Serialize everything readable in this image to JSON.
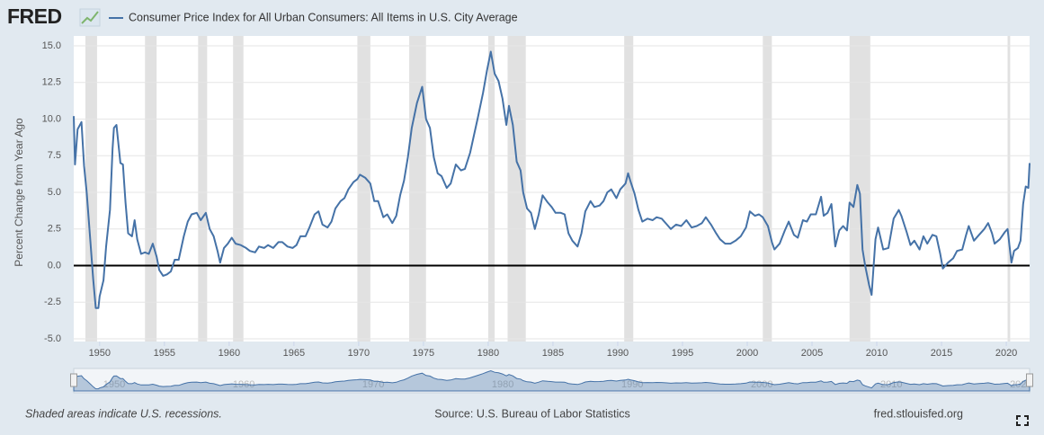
{
  "chart_data": {
    "type": "line",
    "logo": "FRED",
    "ylabel": "Percent Change from Year Ago",
    "source": "Source: U.S. Bureau of Labor Statistics",
    "recession_note": "Shaded areas indicate U.S. recessions.",
    "site": "fred.stlouisfed.org",
    "xlim": [
      1948,
      2021.8
    ],
    "ylim": [
      -5,
      15
    ],
    "xticks": [
      1950,
      1955,
      1960,
      1965,
      1970,
      1975,
      1980,
      1985,
      1990,
      1995,
      2000,
      2005,
      2010,
      2015,
      2020
    ],
    "yticks": [
      {
        "value": -5,
        "label": "-5.0"
      },
      -2.5,
      {
        "value": 0,
        "label": "0.0"
      },
      2.5,
      {
        "value": 5,
        "label": "5.0"
      },
      7.5,
      {
        "value": 10,
        "label": "10.0"
      },
      12.5,
      {
        "value": 15,
        "label": "15.0"
      }
    ],
    "navigator_xticks": [
      1950,
      1960,
      1970,
      1980,
      1990,
      2000,
      2010,
      2020
    ],
    "grid": true,
    "zero_line": true,
    "recession_color": "#e1e1e1",
    "recessions": [
      [
        1948.9,
        1949.8
      ],
      [
        1953.5,
        1954.4
      ],
      [
        1957.6,
        1958.3
      ],
      [
        1960.3,
        1961.1
      ],
      [
        1969.9,
        1970.9
      ],
      [
        1973.9,
        1975.2
      ],
      [
        1980.0,
        1980.5
      ],
      [
        1981.5,
        1982.9
      ],
      [
        1990.5,
        1991.2
      ],
      [
        2001.2,
        2001.9
      ],
      [
        2007.9,
        2009.5
      ],
      [
        2020.1,
        2020.3
      ]
    ],
    "x": [
      1948.0,
      1948.1,
      1948.3,
      1948.6,
      1948.8,
      1949.0,
      1949.3,
      1949.5,
      1949.7,
      1949.9,
      1950.0,
      1950.3,
      1950.5,
      1950.8,
      1951.0,
      1951.1,
      1951.3,
      1951.6,
      1951.8,
      1952.0,
      1952.2,
      1952.5,
      1952.7,
      1952.9,
      1953.2,
      1953.5,
      1953.8,
      1954.1,
      1954.4,
      1954.6,
      1954.9,
      1955.2,
      1955.5,
      1955.8,
      1956.1,
      1956.5,
      1956.8,
      1957.1,
      1957.5,
      1957.8,
      1958.2,
      1958.5,
      1958.8,
      1959.1,
      1959.3,
      1959.6,
      1959.9,
      1960.2,
      1960.5,
      1960.9,
      1961.3,
      1961.6,
      1962.0,
      1962.3,
      1962.7,
      1963.0,
      1963.4,
      1963.8,
      1964.1,
      1964.5,
      1964.9,
      1965.2,
      1965.5,
      1965.9,
      1966.2,
      1966.6,
      1966.9,
      1967.2,
      1967.6,
      1967.9,
      1968.2,
      1968.6,
      1968.9,
      1969.2,
      1969.6,
      1969.9,
      1970.1,
      1970.5,
      1970.9,
      1971.2,
      1971.5,
      1971.9,
      1972.2,
      1972.6,
      1972.9,
      1973.2,
      1973.5,
      1973.8,
      1974.1,
      1974.5,
      1974.9,
      1975.2,
      1975.5,
      1975.8,
      1976.1,
      1976.4,
      1976.8,
      1977.1,
      1977.5,
      1977.9,
      1978.2,
      1978.6,
      1978.9,
      1979.2,
      1979.6,
      1979.9,
      1980.2,
      1980.5,
      1980.8,
      1981.1,
      1981.4,
      1981.6,
      1981.9,
      1982.2,
      1982.5,
      1982.7,
      1983.0,
      1983.3,
      1983.6,
      1983.9,
      1984.2,
      1984.6,
      1984.9,
      1985.2,
      1985.6,
      1985.9,
      1986.2,
      1986.5,
      1986.9,
      1987.2,
      1987.5,
      1987.9,
      1988.2,
      1988.6,
      1988.9,
      1989.2,
      1989.5,
      1989.9,
      1990.2,
      1990.6,
      1990.8,
      1991.0,
      1991.3,
      1991.6,
      1991.9,
      1992.3,
      1992.7,
      1993.0,
      1993.4,
      1993.8,
      1994.1,
      1994.5,
      1994.9,
      1995.3,
      1995.7,
      1996.1,
      1996.5,
      1996.8,
      1997.2,
      1997.6,
      1997.9,
      1998.3,
      1998.7,
      1999.1,
      1999.5,
      1999.9,
      2000.2,
      2000.6,
      2000.9,
      2001.2,
      2001.6,
      2001.9,
      2002.1,
      2002.5,
      2002.9,
      2003.2,
      2003.6,
      2003.9,
      2004.3,
      2004.6,
      2004.9,
      2005.3,
      2005.7,
      2005.9,
      2006.2,
      2006.5,
      2006.8,
      2007.1,
      2007.4,
      2007.7,
      2007.9,
      2008.2,
      2008.5,
      2008.7,
      2008.9,
      2009.1,
      2009.4,
      2009.6,
      2009.9,
      2010.1,
      2010.5,
      2010.9,
      2011.3,
      2011.7,
      2011.9,
      2012.3,
      2012.6,
      2012.9,
      2013.3,
      2013.6,
      2013.9,
      2014.3,
      2014.6,
      2014.9,
      2015.1,
      2015.5,
      2015.9,
      2016.2,
      2016.6,
      2016.9,
      2017.1,
      2017.5,
      2017.9,
      2018.3,
      2018.6,
      2018.9,
      2019.1,
      2019.5,
      2019.9,
      2020.1,
      2020.4,
      2020.6,
      2020.9,
      2021.1,
      2021.3,
      2021.5,
      2021.7,
      2021.8
    ],
    "series": [
      {
        "name": "Consumer Price Index for All Urban Consumers: All Items in U.S. City Average",
        "color": "#4572a7",
        "values": [
          10.2,
          6.9,
          9.3,
          9.8,
          6.8,
          5.0,
          1.5,
          -0.9,
          -2.9,
          -2.9,
          -2.1,
          -1.0,
          1.3,
          3.8,
          8.0,
          9.4,
          9.6,
          7.0,
          6.9,
          4.3,
          2.2,
          2.0,
          3.1,
          1.8,
          0.8,
          0.9,
          0.8,
          1.5,
          0.6,
          -0.3,
          -0.7,
          -0.6,
          -0.4,
          0.4,
          0.4,
          2.0,
          3.0,
          3.5,
          3.6,
          3.1,
          3.6,
          2.5,
          2.0,
          1.0,
          0.2,
          1.2,
          1.5,
          1.9,
          1.5,
          1.4,
          1.2,
          1.0,
          0.9,
          1.3,
          1.2,
          1.4,
          1.2,
          1.6,
          1.6,
          1.3,
          1.2,
          1.4,
          2.0,
          2.0,
          2.6,
          3.5,
          3.7,
          2.8,
          2.6,
          3.0,
          3.9,
          4.4,
          4.6,
          5.2,
          5.7,
          5.9,
          6.2,
          6.0,
          5.6,
          4.4,
          4.4,
          3.3,
          3.5,
          2.9,
          3.4,
          4.8,
          5.8,
          7.4,
          9.4,
          11.1,
          12.2,
          10.0,
          9.4,
          7.4,
          6.3,
          6.1,
          5.3,
          5.6,
          6.9,
          6.5,
          6.6,
          7.7,
          8.9,
          10.1,
          11.8,
          13.3,
          14.6,
          13.1,
          12.6,
          11.4,
          9.6,
          10.9,
          9.6,
          7.1,
          6.5,
          5.0,
          3.9,
          3.6,
          2.5,
          3.5,
          4.8,
          4.3,
          4.0,
          3.6,
          3.6,
          3.5,
          2.2,
          1.7,
          1.3,
          2.2,
          3.7,
          4.4,
          4.0,
          4.1,
          4.4,
          5.0,
          5.2,
          4.6,
          5.2,
          5.6,
          6.3,
          5.7,
          4.9,
          3.8,
          3.0,
          3.2,
          3.1,
          3.3,
          3.2,
          2.8,
          2.5,
          2.8,
          2.7,
          3.1,
          2.6,
          2.7,
          2.9,
          3.3,
          2.8,
          2.2,
          1.8,
          1.5,
          1.5,
          1.7,
          2.0,
          2.6,
          3.7,
          3.4,
          3.5,
          3.3,
          2.7,
          1.6,
          1.1,
          1.5,
          2.4,
          3.0,
          2.1,
          1.9,
          3.1,
          3.0,
          3.5,
          3.5,
          4.7,
          3.4,
          3.6,
          4.2,
          1.3,
          2.4,
          2.7,
          2.4,
          4.3,
          4.0,
          5.5,
          4.9,
          1.1,
          0.0,
          -1.3,
          -2.0,
          1.8,
          2.6,
          1.1,
          1.2,
          3.2,
          3.8,
          3.4,
          2.3,
          1.4,
          1.7,
          1.1,
          2.0,
          1.5,
          2.1,
          2.0,
          0.8,
          -0.2,
          0.2,
          0.5,
          1.0,
          1.1,
          2.1,
          2.7,
          1.7,
          2.1,
          2.5,
          2.9,
          2.2,
          1.5,
          1.8,
          2.3,
          2.5,
          0.2,
          1.0,
          1.2,
          1.7,
          4.2,
          5.4,
          5.3,
          7.0
        ]
      }
    ]
  }
}
